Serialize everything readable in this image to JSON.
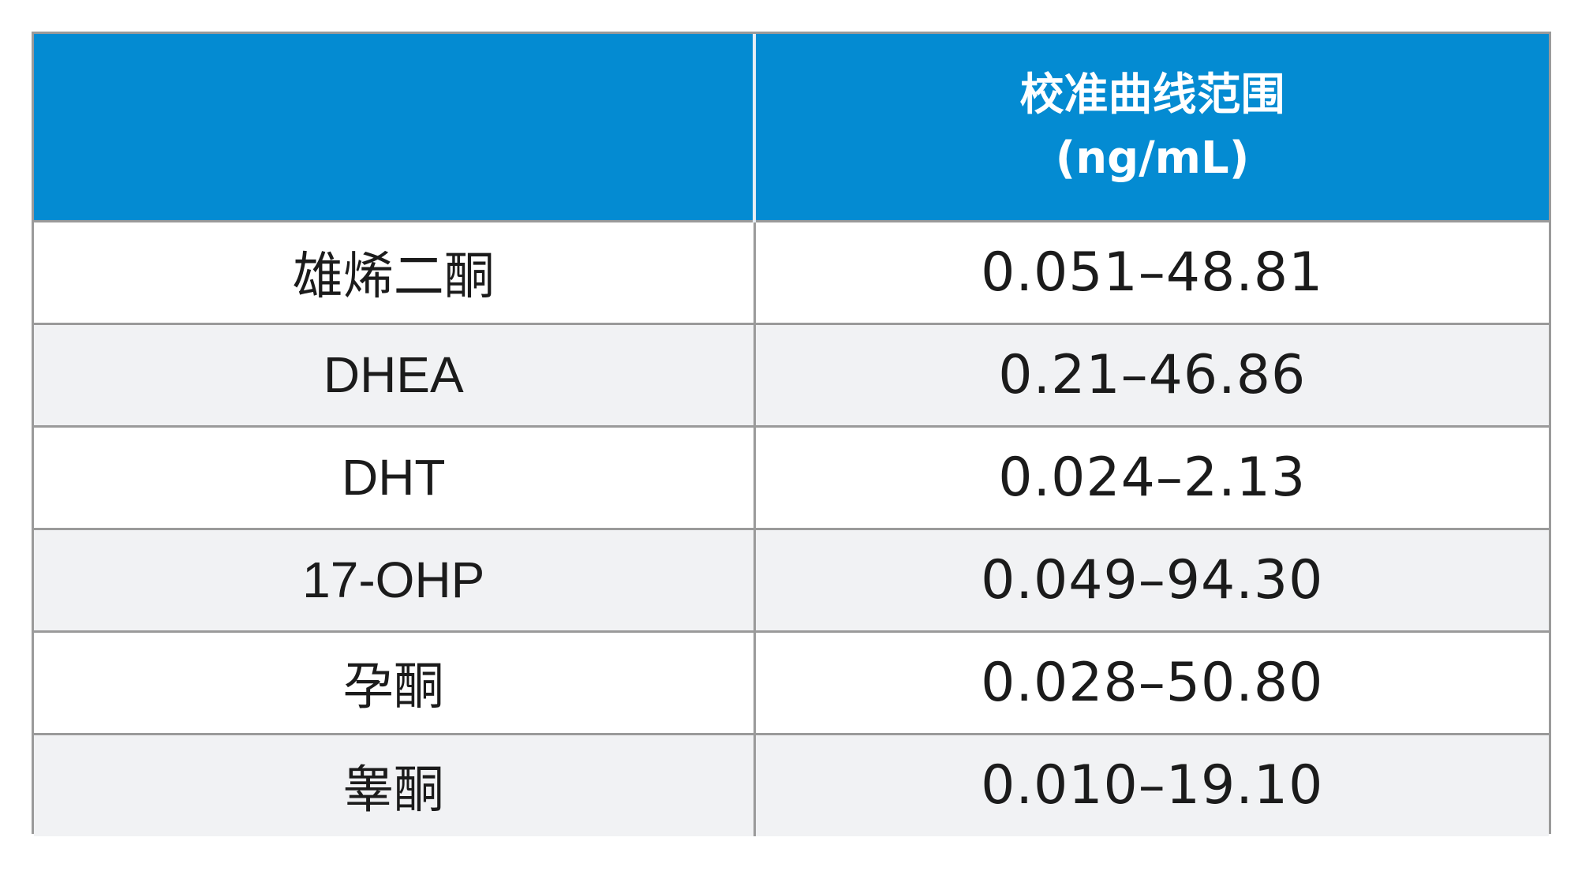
{
  "header": {
    "col1": "",
    "col2_line1": "校准曲线范围",
    "col2_line2": "(ng/mL)"
  },
  "rows": [
    {
      "name": "雄烯二酮",
      "range": "0.051–48.81"
    },
    {
      "name": "DHEA",
      "range": "0.21–46.86"
    },
    {
      "name": "DHT",
      "range": "0.024–2.13"
    },
    {
      "name": "17-OHP",
      "range": "0.049–94.30"
    },
    {
      "name": "孕酮",
      "range": "0.028–50.80"
    },
    {
      "name": "睾酮",
      "range": "0.010–19.10"
    }
  ],
  "colors": {
    "header_bg": "#048bd2",
    "header_text": "#ffffff",
    "row_alt_bg": "#f1f2f4",
    "border": "#9a9a9a"
  }
}
